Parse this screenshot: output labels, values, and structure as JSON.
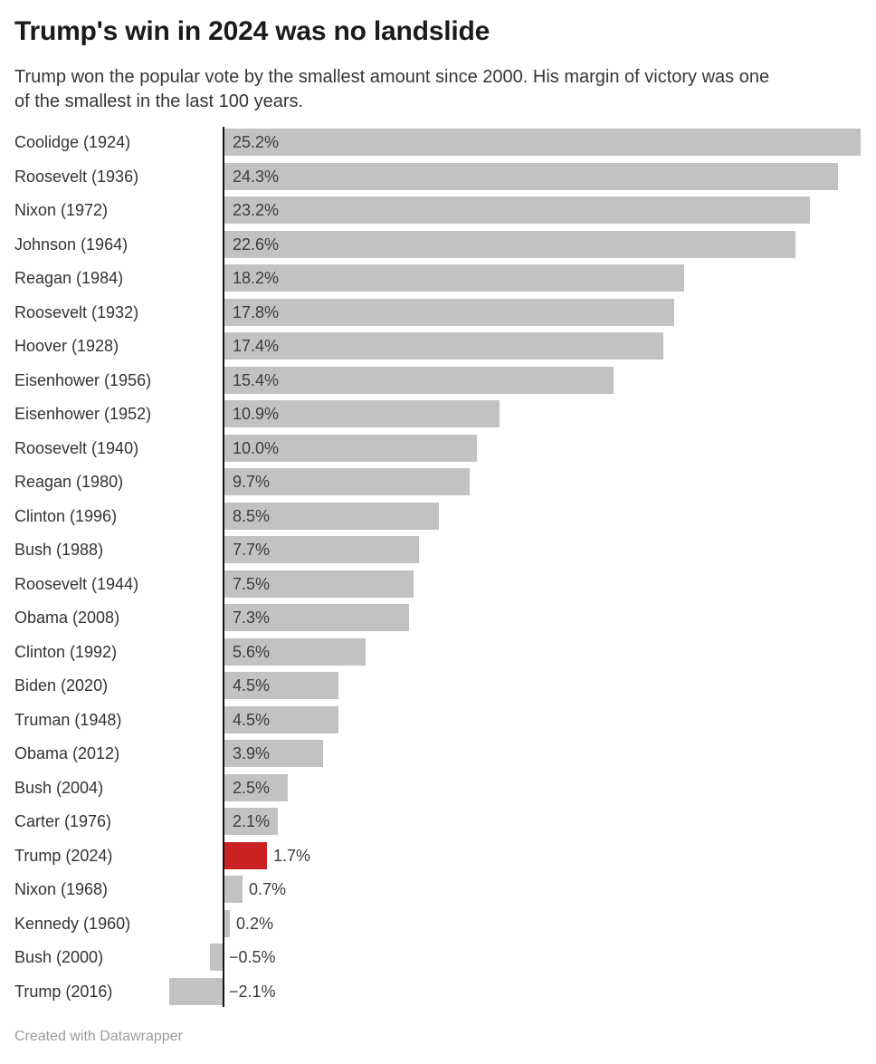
{
  "chart_data": {
    "type": "bar",
    "orientation": "horizontal",
    "title": "Trump's win in 2024 was no landslide",
    "subtitle": "Trump won the popular vote by the smallest amount since 2000. His margin of victory was one of the smallest in the last 100 years.",
    "subtitle_lines": [
      "Trump won the popular vote by the smallest amount since 2000. His margin of victory was one",
      "of the smallest in the last 100 years."
    ],
    "credit": "Created with Datawrapper",
    "unit": "%",
    "xlabel": "",
    "ylabel": "",
    "xlim": [
      -2.6,
      25.8
    ],
    "grid": false,
    "legend": false,
    "categories": [
      "Coolidge (1924)",
      "Roosevelt (1936)",
      "Nixon (1972)",
      "Johnson (1964)",
      "Reagan (1984)",
      "Roosevelt (1932)",
      "Hoover (1928)",
      "Eisenhower (1956)",
      "Eisenhower (1952)",
      "Roosevelt (1940)",
      "Reagan (1980)",
      "Clinton (1996)",
      "Bush (1988)",
      "Roosevelt (1944)",
      "Obama (2008)",
      "Clinton (1992)",
      "Biden (2020)",
      "Truman (1948)",
      "Obama (2012)",
      "Bush (2004)",
      "Carter (1976)",
      "Trump (2024)",
      "Nixon (1968)",
      "Kennedy (1960)",
      "Bush (2000)",
      "Trump (2016)"
    ],
    "values": [
      25.2,
      24.3,
      23.2,
      22.6,
      18.2,
      17.8,
      17.4,
      15.4,
      10.9,
      10.0,
      9.7,
      8.5,
      7.7,
      7.5,
      7.3,
      5.6,
      4.5,
      4.5,
      3.9,
      2.5,
      2.1,
      1.7,
      0.7,
      0.2,
      -0.5,
      -2.1
    ],
    "value_labels": [
      "25.2%",
      "24.3%",
      "23.2%",
      "22.6%",
      "18.2%",
      "17.8%",
      "17.4%",
      "15.4%",
      "10.9%",
      "10.0%",
      "9.7%",
      "8.5%",
      "7.7%",
      "7.5%",
      "7.3%",
      "5.6%",
      "4.5%",
      "4.5%",
      "3.9%",
      "2.5%",
      "2.1%",
      "1.7%",
      "0.7%",
      "0.2%",
      "−0.5%",
      "−2.1%"
    ],
    "highlight_index": 21,
    "highlight_category": "Trump (2024)",
    "colors": {
      "bar": "#c2c2c2",
      "highlight": "#cb2024",
      "axis": "#141414",
      "title": "#1b1b1b",
      "subtitle": "#363636",
      "category_label": "#333333",
      "value_label": "#3c3c3c",
      "credit": "#9b9b9b",
      "background": "#ffffff"
    }
  }
}
